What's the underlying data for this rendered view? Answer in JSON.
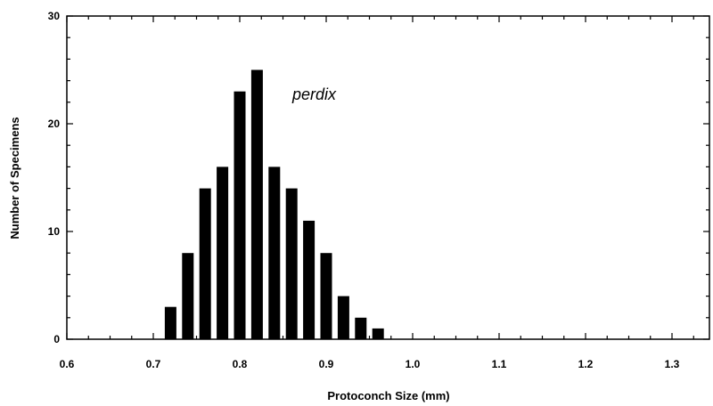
{
  "chart_data": {
    "type": "bar",
    "xlabel": "Protoconch Size (mm)",
    "ylabel": "Number of Specimens",
    "xlim": [
      0.6,
      1.35
    ],
    "ylim": [
      0,
      30
    ],
    "x_ticks": [
      "0.6",
      "0.7",
      "0.8",
      "0.9",
      "1.0",
      "1.1",
      "1.2",
      "1.3"
    ],
    "y_ticks": [
      "0",
      "10",
      "20",
      "30"
    ],
    "annotation": "perdix",
    "bar_color": "#000000",
    "grid": false,
    "x": [
      0.72,
      0.74,
      0.76,
      0.78,
      0.8,
      0.82,
      0.84,
      0.86,
      0.88,
      0.9,
      0.92,
      0.94,
      0.96
    ],
    "values": [
      3,
      8,
      14,
      16,
      23,
      25,
      16,
      14,
      11,
      8,
      4,
      2,
      1
    ]
  }
}
